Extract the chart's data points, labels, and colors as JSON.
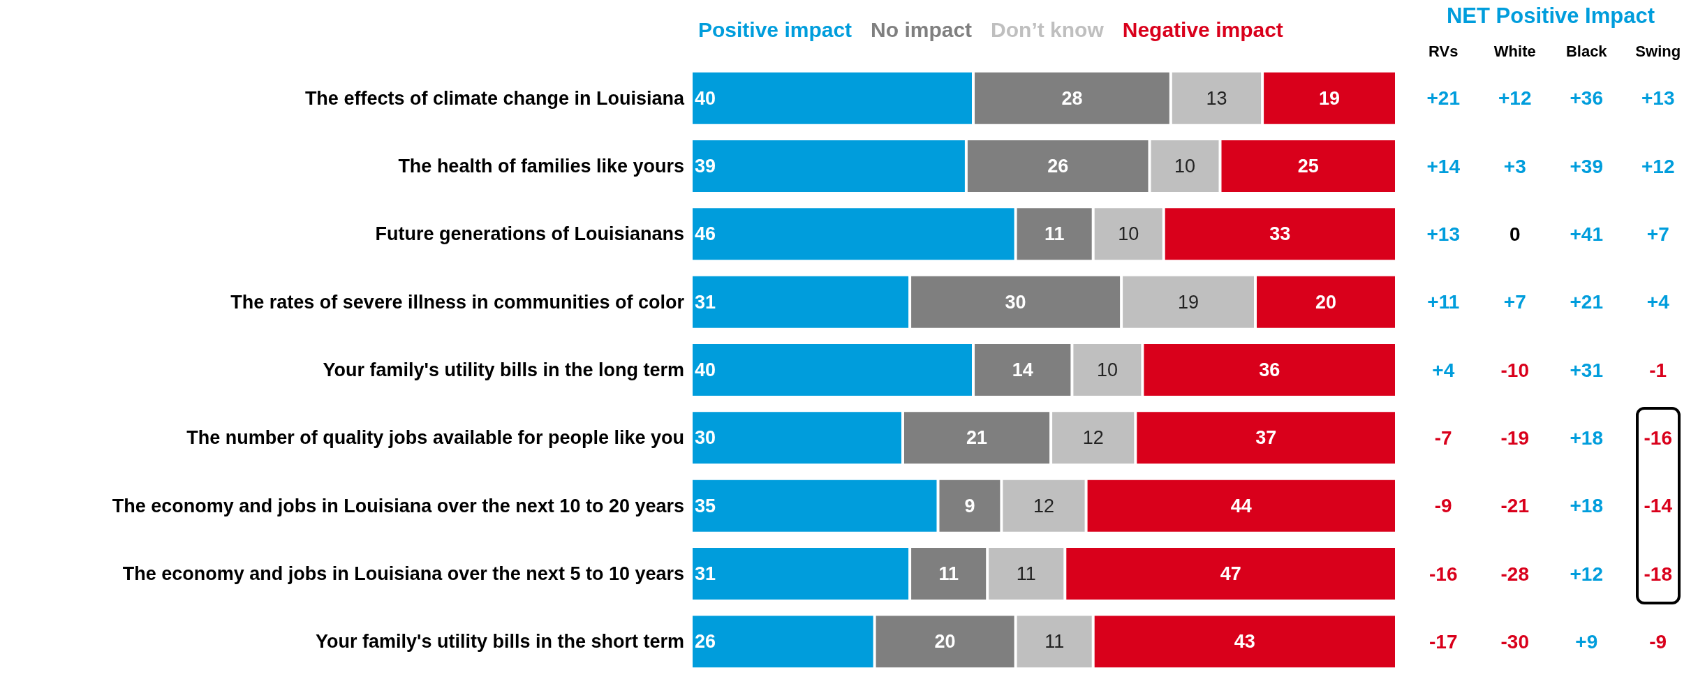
{
  "chart_data": [
    {
      "type": "bar",
      "orientation": "horizontal",
      "stacked": true,
      "data_labels": true,
      "legend": "top",
      "categories": [
        "The effects of climate change in Louisiana",
        "The health of families like yours",
        "Future generations of Louisianans",
        "The rates of severe illness in communities of color",
        "Your family's utility bills in the long term",
        "The number of quality jobs available for people like you",
        "The economy and jobs in Louisiana over the next 10 to 20 years",
        "The economy and jobs in Louisiana over the next 5 to 10 years",
        "Your family's utility bills in the short term"
      ],
      "series": [
        {
          "name": "Positive impact",
          "color": "#009ddc",
          "values": [
            40,
            39,
            46,
            31,
            40,
            30,
            35,
            31,
            26
          ]
        },
        {
          "name": "No impact",
          "color": "#7f7f7f",
          "values": [
            28,
            26,
            11,
            30,
            14,
            21,
            9,
            11,
            20
          ]
        },
        {
          "name": "Don’t know",
          "color": "#bfbfbf",
          "values": [
            13,
            10,
            10,
            19,
            10,
            12,
            12,
            11,
            11
          ]
        },
        {
          "name": "Negative impact",
          "color": "#d9001b",
          "values": [
            19,
            25,
            33,
            20,
            36,
            37,
            44,
            47,
            43
          ]
        }
      ]
    },
    {
      "type": "heatmap",
      "title": "NET Positive Impact",
      "categories": [
        "RVs",
        "White",
        "Black",
        "Swing"
      ],
      "y_categories": [
        null,
        null,
        null,
        null,
        null,
        null,
        null,
        null,
        null
      ],
      "cells": [
        [
          21,
          12,
          36,
          13
        ],
        [
          14,
          3,
          39,
          12
        ],
        [
          13,
          0,
          41,
          7
        ],
        [
          11,
          7,
          21,
          4
        ],
        [
          4,
          -10,
          31,
          -1
        ],
        [
          -7,
          -19,
          18,
          -16
        ],
        [
          -9,
          -21,
          18,
          -14
        ],
        [
          -16,
          -28,
          12,
          -18
        ],
        [
          -17,
          -30,
          9,
          -9
        ]
      ],
      "cell_labels": [
        [
          "+21",
          "+12",
          "+36",
          "+13"
        ],
        [
          "+14",
          "+3",
          "+39",
          "+12"
        ],
        [
          "+13",
          "0",
          "+41",
          "+7"
        ],
        [
          "+11",
          "+7",
          "+21",
          "+4"
        ],
        [
          "+4",
          "-10",
          "+31",
          "-1"
        ],
        [
          "-7",
          "-19",
          "+18",
          "-16"
        ],
        [
          "-9",
          "-21",
          "+18",
          "-14"
        ],
        [
          "-16",
          "-28",
          "+12",
          "-18"
        ],
        [
          "-17",
          "-30",
          "+9",
          "-9"
        ]
      ]
    }
  ]
}
